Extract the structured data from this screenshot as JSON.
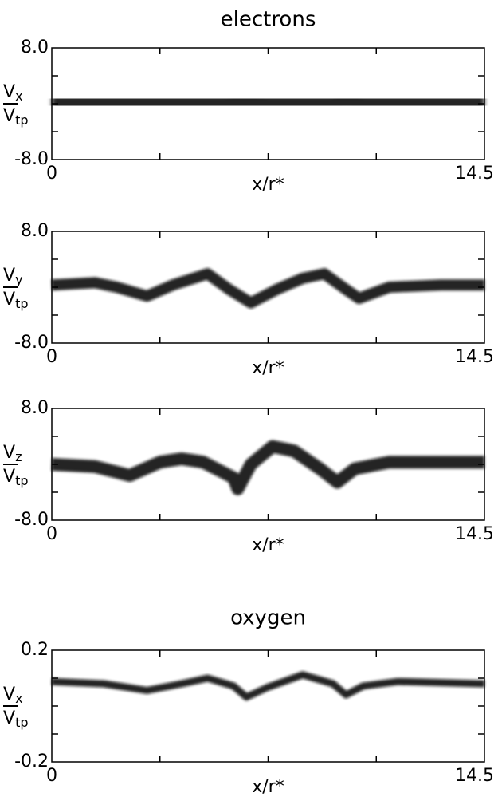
{
  "chart_data": [
    {
      "type": "phase-space",
      "title": "electrons",
      "ylabel": {
        "top": "V",
        "top_sub": "x",
        "bottom": "V",
        "bottom_sub": "tp"
      },
      "xlabel": "x/r*",
      "xlim": [
        0,
        14.5
      ],
      "xticks": [
        0,
        14.5
      ],
      "ylim": [
        -8,
        8
      ],
      "yticks": [
        {
          "value": 8,
          "label": "8.0"
        },
        {
          "value": -8,
          "label": "-8.0"
        }
      ]
    },
    {
      "type": "phase-space",
      "ylabel": {
        "top": "V",
        "top_sub": "y",
        "bottom": "V",
        "bottom_sub": "tp"
      },
      "xlabel": "x/r*",
      "xlim": [
        0,
        14.5
      ],
      "xticks": [
        0,
        14.5
      ],
      "ylim": [
        -8,
        8
      ],
      "yticks": [
        {
          "value": 8,
          "label": "8.0"
        },
        {
          "value": -8,
          "label": "-8.0"
        }
      ]
    },
    {
      "type": "phase-space",
      "ylabel": {
        "top": "V",
        "top_sub": "z",
        "bottom": "V",
        "bottom_sub": "tp"
      },
      "xlabel": "x/r*",
      "xlim": [
        0,
        14.5
      ],
      "xticks": [
        0,
        14.5
      ],
      "ylim": [
        -8,
        8
      ],
      "yticks": [
        {
          "value": 8,
          "label": "8.0"
        },
        {
          "value": -8,
          "label": "-8.0"
        }
      ]
    },
    {
      "type": "phase-space",
      "title": "oxygen",
      "ylabel": {
        "top": "V",
        "top_sub": "x",
        "bottom": "V",
        "bottom_sub": "tp"
      },
      "xlabel": "x/r*",
      "xlim": [
        0,
        14.5
      ],
      "xticks": [
        0,
        14.5
      ],
      "ylim": [
        -0.2,
        0.2
      ],
      "yticks": [
        0.2,
        -0.2
      ]
    }
  ]
}
